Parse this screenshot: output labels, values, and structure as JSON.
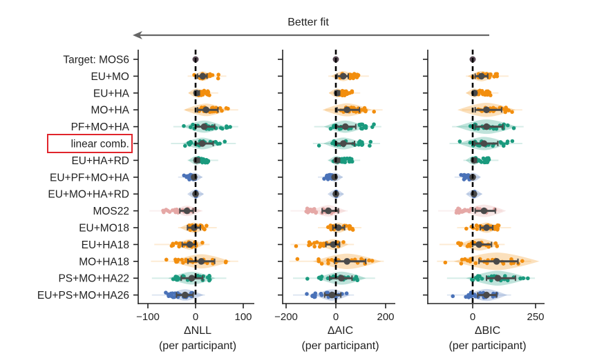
{
  "chart_data": {
    "type": "scatter",
    "subtype": "violin-strip with mean and error bars",
    "annotation": {
      "text": "Better fit",
      "arrow_direction": "left"
    },
    "categories": [
      "Target: MOS6",
      "EU+MO",
      "EU+HA",
      "MO+HA",
      "PF+MO+HA",
      "linear comb.",
      "EU+HA+RD",
      "EU+PF+MO+HA",
      "EU+MO+HA+RD",
      "MOS22",
      "EU+MO18",
      "EU+HA18",
      "MO+HA18",
      "PS+MO+HA22",
      "EU+PS+MO+HA26"
    ],
    "highlighted_category": "linear comb.",
    "highlight_color": "#e0242b",
    "category_colors": [
      "#5a4a55",
      "#f28e0e",
      "#f28e0e",
      "#f28e0e",
      "#1a9a7e",
      "#1a9a7e",
      "#1a9a7e",
      "#4a72b8",
      "#4a72b8",
      "#e5a8a6",
      "#f28e0e",
      "#f28e0e",
      "#f28e0e",
      "#1a9a7e",
      "#4a72b8"
    ],
    "reference_line": {
      "x": 0,
      "style": "dashed",
      "color": "#000000"
    },
    "panels": [
      {
        "xlabel": "ΔNLL",
        "xlabel2": "(per participant)",
        "xlim": [
          -115,
          105
        ],
        "xticks": [
          -100,
          0,
          100
        ],
        "xtick_labels": [
          "−100",
          "0",
          "100"
        ],
        "mean": [
          0,
          15,
          2,
          22,
          18,
          14,
          2,
          -3,
          0,
          -18,
          -3,
          -12,
          12,
          -8,
          -22
        ],
        "ci_low": [
          0,
          4,
          -2,
          4,
          0,
          0,
          -2,
          -3,
          0,
          -33,
          -17,
          -28,
          -16,
          -30,
          -40
        ],
        "ci_high": [
          0,
          24,
          8,
          47,
          40,
          37,
          8,
          0,
          0,
          -5,
          10,
          0,
          40,
          15,
          -5
        ],
        "range_min": [
          0,
          -5,
          -3,
          -10,
          -35,
          -40,
          -5,
          -25,
          0,
          -85,
          -25,
          -75,
          -82,
          -80,
          -80
        ],
        "range_max": [
          0,
          50,
          33,
          75,
          75,
          70,
          33,
          0,
          2,
          0,
          30,
          15,
          75,
          50,
          5
        ]
      },
      {
        "xlabel": "ΔAIC",
        "xlabel2": "(per participant)",
        "xlim": [
          -215,
          215
        ],
        "xticks": [
          -200,
          0,
          200
        ],
        "xtick_labels": [
          "−200",
          "0",
          "200"
        ],
        "mean": [
          0,
          30,
          5,
          45,
          38,
          30,
          3,
          -5,
          0,
          -30,
          10,
          -10,
          45,
          22,
          -15
        ],
        "ci_low": [
          0,
          5,
          -3,
          5,
          2,
          2,
          -3,
          -5,
          0,
          -55,
          -12,
          -40,
          -5,
          -25,
          -45
        ],
        "ci_high": [
          0,
          50,
          15,
          95,
          80,
          75,
          15,
          0,
          0,
          10,
          35,
          15,
          120,
          65,
          20
        ],
        "range_min": [
          0,
          -8,
          -5,
          -20,
          -65,
          -70,
          -10,
          -50,
          0,
          -160,
          -50,
          -160,
          -165,
          -150,
          -150
        ],
        "range_max": [
          0,
          105,
          70,
          160,
          155,
          150,
          70,
          0,
          2,
          20,
          75,
          45,
          165,
          130,
          45
        ]
      },
      {
        "xlabel": "ΔBIC",
        "xlabel2": "(per participant)",
        "xlim": [
          -180,
          270
        ],
        "xticks": [
          0,
          250
        ],
        "xtick_labels": [
          "0",
          "250"
        ],
        "mean": [
          0,
          35,
          7,
          55,
          55,
          45,
          5,
          0,
          5,
          45,
          55,
          25,
          95,
          100,
          55
        ],
        "ci_low": [
          0,
          10,
          0,
          10,
          10,
          8,
          0,
          0,
          5,
          10,
          30,
          0,
          25,
          55,
          20
        ],
        "ci_high": [
          0,
          60,
          15,
          115,
          120,
          100,
          15,
          0,
          5,
          90,
          80,
          75,
          180,
          170,
          95
        ],
        "range_min": [
          0,
          -5,
          -5,
          -20,
          -60,
          -70,
          -15,
          -50,
          0,
          -115,
          -40,
          -110,
          -120,
          -80,
          -80
        ],
        "range_max": [
          0,
          115,
          75,
          170,
          175,
          170,
          75,
          0,
          10,
          90,
          125,
          100,
          205,
          220,
          125
        ]
      }
    ]
  }
}
